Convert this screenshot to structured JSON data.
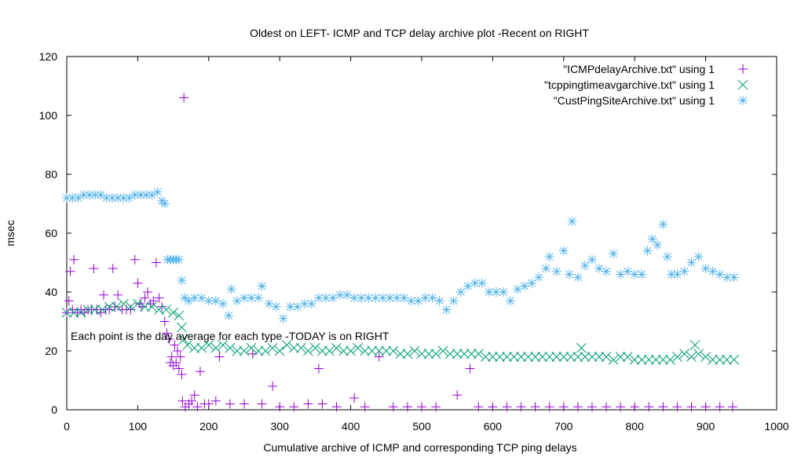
{
  "chart_data": {
    "type": "scatter",
    "title": "Oldest on LEFT- ICMP and TCP delay archive plot -Recent on RIGHT",
    "xlabel": "Cumulative archive of ICMP and corresponding TCP ping delays",
    "ylabel": "msec",
    "xlim": [
      0,
      1000
    ],
    "ylim": [
      0,
      120
    ],
    "x_ticks": [
      "0",
      "100",
      "200",
      "300",
      "400",
      "500",
      "600",
      "700",
      "800",
      "900",
      "1000"
    ],
    "y_ticks": [
      "0",
      "20",
      "40",
      "60",
      "80",
      "100",
      "120"
    ],
    "annotation": "Each point is the day average for each type -TODAY is on RIGHT",
    "legend_position": "top-right",
    "grid": false,
    "series": [
      {
        "name": "\"ICMPdelayArchive.txt\" using 1",
        "marker": "plus",
        "color": "#9400d3",
        "points": [
          [
            0,
            33
          ],
          [
            3,
            37
          ],
          [
            5,
            47
          ],
          [
            8,
            34
          ],
          [
            10,
            51
          ],
          [
            15,
            33
          ],
          [
            20,
            34
          ],
          [
            25,
            33
          ],
          [
            30,
            34
          ],
          [
            35,
            34
          ],
          [
            38,
            48
          ],
          [
            42,
            34
          ],
          [
            48,
            33
          ],
          [
            52,
            39
          ],
          [
            55,
            34
          ],
          [
            60,
            34
          ],
          [
            65,
            48
          ],
          [
            68,
            35
          ],
          [
            72,
            39
          ],
          [
            78,
            34
          ],
          [
            84,
            34
          ],
          [
            90,
            34
          ],
          [
            96,
            51
          ],
          [
            100,
            43
          ],
          [
            103,
            36
          ],
          [
            106,
            35
          ],
          [
            110,
            38
          ],
          [
            114,
            40
          ],
          [
            118,
            36
          ],
          [
            122,
            37
          ],
          [
            126,
            50
          ],
          [
            130,
            38
          ],
          [
            134,
            35
          ],
          [
            138,
            30
          ],
          [
            141,
            26
          ],
          [
            144,
            24
          ],
          [
            146,
            16
          ],
          [
            148,
            18
          ],
          [
            150,
            15
          ],
          [
            152,
            22
          ],
          [
            154,
            16
          ],
          [
            156,
            20
          ],
          [
            158,
            14
          ],
          [
            160,
            18
          ],
          [
            162,
            12
          ],
          [
            163,
            3
          ],
          [
            165,
            106
          ],
          [
            167,
            1
          ],
          [
            172,
            2
          ],
          [
            176,
            3
          ],
          [
            180,
            5
          ],
          [
            184,
            1
          ],
          [
            188,
            13
          ],
          [
            194,
            2
          ],
          [
            200,
            2
          ],
          [
            210,
            3
          ],
          [
            215,
            18
          ],
          [
            230,
            2
          ],
          [
            250,
            2
          ],
          [
            262,
            19
          ],
          [
            275,
            2
          ],
          [
            290,
            8
          ],
          [
            300,
            1
          ],
          [
            320,
            1
          ],
          [
            340,
            2
          ],
          [
            355,
            14
          ],
          [
            360,
            2
          ],
          [
            380,
            1
          ],
          [
            405,
            4
          ],
          [
            420,
            1
          ],
          [
            440,
            18
          ],
          [
            460,
            1
          ],
          [
            480,
            1
          ],
          [
            500,
            1
          ],
          [
            520,
            1
          ],
          [
            550,
            5
          ],
          [
            568,
            14
          ],
          [
            580,
            1
          ],
          [
            600,
            1
          ],
          [
            620,
            1
          ],
          [
            640,
            1
          ],
          [
            660,
            1
          ],
          [
            680,
            1
          ],
          [
            700,
            1
          ],
          [
            720,
            1
          ],
          [
            740,
            1
          ],
          [
            760,
            1
          ],
          [
            780,
            1
          ],
          [
            800,
            1
          ],
          [
            820,
            1
          ],
          [
            840,
            1
          ],
          [
            860,
            1
          ],
          [
            880,
            1
          ],
          [
            900,
            1
          ],
          [
            920,
            1
          ],
          [
            938,
            1
          ]
        ]
      },
      {
        "name": "\"tcppingtimeavgarchive.txt\" using 1",
        "marker": "cross",
        "color": "#009e73",
        "points": [
          [
            0,
            33
          ],
          [
            10,
            33
          ],
          [
            20,
            33
          ],
          [
            30,
            34
          ],
          [
            40,
            34
          ],
          [
            50,
            34
          ],
          [
            60,
            35
          ],
          [
            70,
            35
          ],
          [
            80,
            36
          ],
          [
            90,
            35
          ],
          [
            100,
            36
          ],
          [
            110,
            35
          ],
          [
            120,
            35
          ],
          [
            130,
            34
          ],
          [
            140,
            34
          ],
          [
            150,
            33
          ],
          [
            158,
            32
          ],
          [
            162,
            28
          ],
          [
            165,
            24
          ],
          [
            170,
            22
          ],
          [
            180,
            21
          ],
          [
            190,
            21
          ],
          [
            200,
            22
          ],
          [
            210,
            21
          ],
          [
            220,
            22
          ],
          [
            230,
            21
          ],
          [
            240,
            20
          ],
          [
            250,
            20
          ],
          [
            260,
            21
          ],
          [
            270,
            20
          ],
          [
            280,
            20
          ],
          [
            290,
            21
          ],
          [
            300,
            20
          ],
          [
            310,
            22
          ],
          [
            320,
            21
          ],
          [
            330,
            21
          ],
          [
            340,
            20
          ],
          [
            350,
            21
          ],
          [
            360,
            20
          ],
          [
            370,
            20
          ],
          [
            380,
            21
          ],
          [
            390,
            20
          ],
          [
            400,
            20
          ],
          [
            410,
            21
          ],
          [
            420,
            20
          ],
          [
            430,
            20
          ],
          [
            440,
            20
          ],
          [
            450,
            20
          ],
          [
            460,
            20
          ],
          [
            470,
            19
          ],
          [
            480,
            19
          ],
          [
            490,
            20
          ],
          [
            500,
            19
          ],
          [
            510,
            19
          ],
          [
            520,
            19
          ],
          [
            530,
            20
          ],
          [
            540,
            19
          ],
          [
            550,
            19
          ],
          [
            560,
            19
          ],
          [
            570,
            19
          ],
          [
            580,
            19
          ],
          [
            590,
            18
          ],
          [
            600,
            18
          ],
          [
            610,
            18
          ],
          [
            620,
            18
          ],
          [
            630,
            18
          ],
          [
            640,
            18
          ],
          [
            650,
            18
          ],
          [
            660,
            18
          ],
          [
            670,
            18
          ],
          [
            680,
            18
          ],
          [
            690,
            18
          ],
          [
            700,
            18
          ],
          [
            710,
            18
          ],
          [
            720,
            18
          ],
          [
            725,
            21
          ],
          [
            730,
            18
          ],
          [
            740,
            18
          ],
          [
            750,
            18
          ],
          [
            760,
            18
          ],
          [
            770,
            17
          ],
          [
            780,
            18
          ],
          [
            790,
            18
          ],
          [
            800,
            17
          ],
          [
            810,
            17
          ],
          [
            820,
            17
          ],
          [
            830,
            17
          ],
          [
            840,
            17
          ],
          [
            850,
            17
          ],
          [
            860,
            18
          ],
          [
            870,
            19
          ],
          [
            880,
            18
          ],
          [
            885,
            22
          ],
          [
            890,
            19
          ],
          [
            900,
            18
          ],
          [
            910,
            17
          ],
          [
            920,
            17
          ],
          [
            930,
            17
          ],
          [
            940,
            17
          ]
        ]
      },
      {
        "name": "\"CustPingSiteArchive.txt\" using 1",
        "marker": "star",
        "color": "#56b4e9",
        "points": [
          [
            0,
            72
          ],
          [
            8,
            72
          ],
          [
            16,
            72
          ],
          [
            24,
            73
          ],
          [
            32,
            73
          ],
          [
            40,
            73
          ],
          [
            48,
            73
          ],
          [
            56,
            72
          ],
          [
            64,
            72
          ],
          [
            72,
            72
          ],
          [
            80,
            72
          ],
          [
            88,
            72
          ],
          [
            96,
            73
          ],
          [
            104,
            73
          ],
          [
            112,
            73
          ],
          [
            120,
            73
          ],
          [
            128,
            74
          ],
          [
            134,
            71
          ],
          [
            138,
            70
          ],
          [
            142,
            51
          ],
          [
            146,
            51
          ],
          [
            150,
            51
          ],
          [
            154,
            51
          ],
          [
            158,
            51
          ],
          [
            162,
            44
          ],
          [
            166,
            38
          ],
          [
            172,
            37
          ],
          [
            180,
            38
          ],
          [
            190,
            38
          ],
          [
            200,
            37
          ],
          [
            210,
            37
          ],
          [
            220,
            36
          ],
          [
            228,
            32
          ],
          [
            232,
            41
          ],
          [
            240,
            37
          ],
          [
            250,
            38
          ],
          [
            260,
            38
          ],
          [
            270,
            38
          ],
          [
            275,
            42
          ],
          [
            285,
            36
          ],
          [
            295,
            35
          ],
          [
            305,
            31
          ],
          [
            315,
            35
          ],
          [
            325,
            35
          ],
          [
            335,
            36
          ],
          [
            345,
            36
          ],
          [
            355,
            38
          ],
          [
            365,
            38
          ],
          [
            375,
            38
          ],
          [
            385,
            39
          ],
          [
            395,
            39
          ],
          [
            405,
            38
          ],
          [
            415,
            38
          ],
          [
            425,
            38
          ],
          [
            435,
            38
          ],
          [
            445,
            38
          ],
          [
            455,
            38
          ],
          [
            465,
            38
          ],
          [
            475,
            38
          ],
          [
            485,
            37
          ],
          [
            495,
            37
          ],
          [
            505,
            38
          ],
          [
            515,
            38
          ],
          [
            525,
            37
          ],
          [
            535,
            34
          ],
          [
            545,
            37
          ],
          [
            555,
            40
          ],
          [
            565,
            42
          ],
          [
            575,
            43
          ],
          [
            585,
            43
          ],
          [
            595,
            40
          ],
          [
            605,
            40
          ],
          [
            615,
            40
          ],
          [
            625,
            37
          ],
          [
            635,
            41
          ],
          [
            645,
            42
          ],
          [
            655,
            43
          ],
          [
            665,
            45
          ],
          [
            675,
            48
          ],
          [
            680,
            52
          ],
          [
            690,
            47
          ],
          [
            700,
            54
          ],
          [
            708,
            46
          ],
          [
            712,
            64
          ],
          [
            720,
            45
          ],
          [
            730,
            49
          ],
          [
            740,
            51
          ],
          [
            750,
            48
          ],
          [
            760,
            47
          ],
          [
            770,
            53
          ],
          [
            780,
            46
          ],
          [
            790,
            47
          ],
          [
            800,
            46
          ],
          [
            810,
            46
          ],
          [
            818,
            54
          ],
          [
            825,
            58
          ],
          [
            832,
            56
          ],
          [
            840,
            63
          ],
          [
            846,
            52
          ],
          [
            852,
            46
          ],
          [
            860,
            46
          ],
          [
            870,
            47
          ],
          [
            880,
            50
          ],
          [
            890,
            52
          ],
          [
            900,
            48
          ],
          [
            910,
            47
          ],
          [
            920,
            46
          ],
          [
            930,
            45
          ],
          [
            940,
            45
          ]
        ]
      }
    ]
  }
}
